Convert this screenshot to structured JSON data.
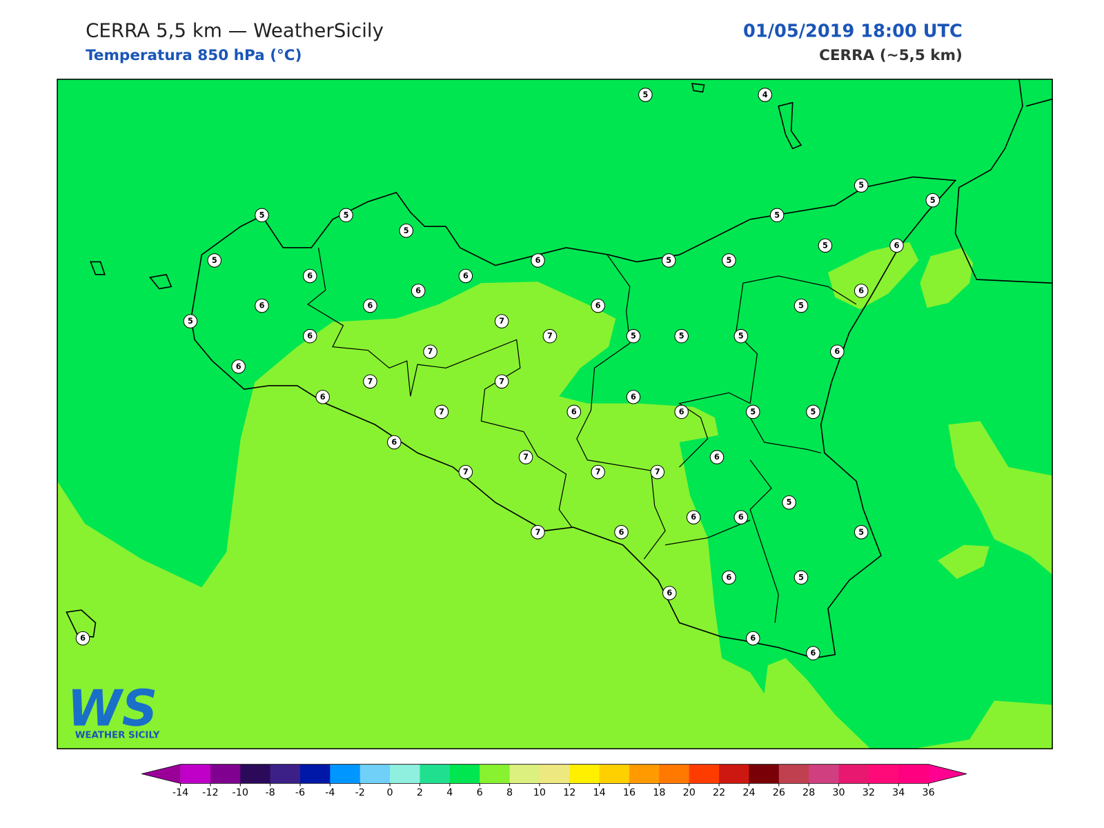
{
  "header": {
    "title": "CERRA 5,5 km — WeatherSicily",
    "subtitle": "Temperatura 850 hPa (°C)",
    "datetime": "01/05/2019 18:00 UTC",
    "model": "CERRA (~5,5 km)"
  },
  "logo": {
    "mark": "WS",
    "text": "WEATHER SICILY"
  },
  "map": {
    "field_colors": [
      "#00e650",
      "#88f230"
    ],
    "stations": [
      5,
      4,
      5,
      5,
      5,
      5,
      5,
      5,
      5,
      6,
      5,
      5,
      5,
      6,
      6,
      6,
      6,
      6,
      6,
      6,
      6,
      5,
      5,
      7,
      6,
      7,
      5,
      5,
      5,
      7,
      6,
      6,
      7,
      7,
      6,
      6,
      7,
      6,
      6,
      5,
      5,
      6,
      6,
      7,
      7,
      7,
      7,
      5,
      6,
      6,
      7,
      6,
      5,
      6,
      5,
      6,
      6,
      6,
      6
    ]
  },
  "colorbar": {
    "ticks": [
      -14,
      -12,
      -10,
      -8,
      -6,
      -4,
      -2,
      0,
      2,
      4,
      6,
      8,
      10,
      12,
      14,
      16,
      18,
      20,
      22,
      24,
      26,
      28,
      30,
      32,
      34,
      36
    ],
    "colors": [
      "#c000c8",
      "#800090",
      "#2c0a5a",
      "#3c2088",
      "#0018a8",
      "#0096ff",
      "#70d0f8",
      "#90f0e0",
      "#20e090",
      "#00e650",
      "#88f230",
      "#dcf080",
      "#eee880",
      "#fff000",
      "#ffd000",
      "#ff9a00",
      "#ff7800",
      "#ff3c00",
      "#cc1810",
      "#7a0008",
      "#c04050",
      "#d04080",
      "#e81870",
      "#ff0a78",
      "#ff0080"
    ],
    "under": "#9a0098",
    "over": "#ff0090"
  }
}
